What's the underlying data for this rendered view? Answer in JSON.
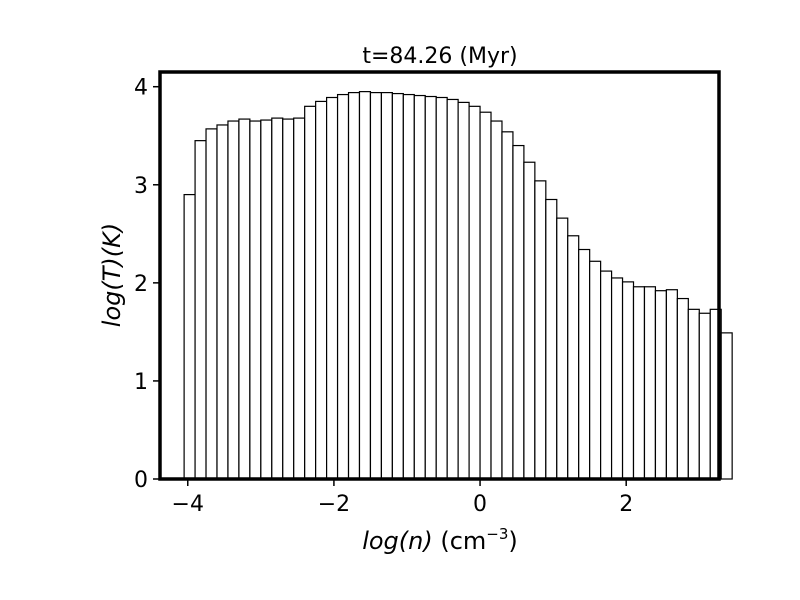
{
  "chart_data": {
    "type": "bar",
    "title": "t=84.26 (Myr)",
    "xlabel_main": "log(n)",
    "xlabel_unit": "(cm",
    "xlabel_exp": "−3",
    "xlabel_close": ")",
    "ylabel": "log(T)(K)",
    "xlim": [
      -4.38,
      3.27
    ],
    "ylim": [
      0,
      4.15
    ],
    "bin_start": -4.05,
    "bin_width": 0.15,
    "values": [
      2.9,
      3.45,
      3.57,
      3.61,
      3.65,
      3.67,
      3.65,
      3.66,
      3.68,
      3.67,
      3.68,
      3.8,
      3.85,
      3.89,
      3.92,
      3.94,
      3.95,
      3.94,
      3.94,
      3.93,
      3.92,
      3.91,
      3.9,
      3.89,
      3.87,
      3.84,
      3.8,
      3.74,
      3.65,
      3.54,
      3.4,
      3.23,
      3.04,
      2.85,
      2.66,
      2.48,
      2.34,
      2.22,
      2.12,
      2.05,
      2.01,
      1.96,
      1.96,
      1.92,
      1.93,
      1.84,
      1.73,
      1.69,
      1.73,
      1.49
    ],
    "x_ticks": [
      -4,
      -2,
      0,
      2
    ],
    "x_tick_labels": [
      "−4",
      "−2",
      "0",
      "2"
    ],
    "y_ticks": [
      0,
      1,
      2,
      3,
      4
    ],
    "y_tick_labels": [
      "0",
      "1",
      "2",
      "3",
      "4"
    ],
    "colors": {
      "bar_fill": "#ffffff",
      "bar_edge": "#000000"
    }
  }
}
